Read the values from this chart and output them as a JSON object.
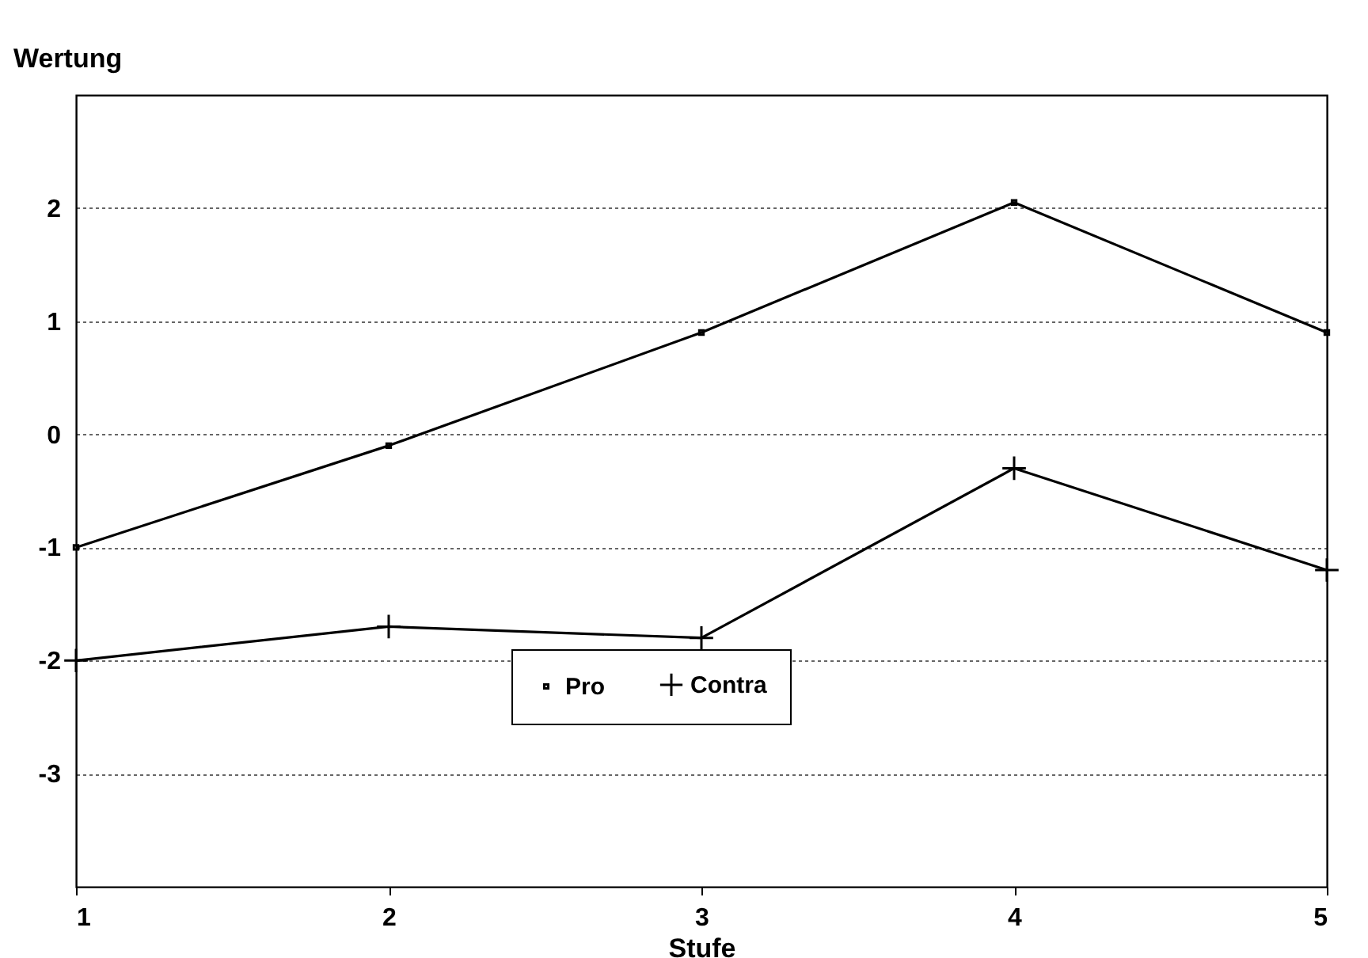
{
  "chart_data": {
    "type": "line",
    "xlabel": "Stufe",
    "ylabel": "Wertung",
    "x": [
      1,
      2,
      3,
      4,
      5
    ],
    "xlim": [
      1,
      5
    ],
    "xticks": [
      1,
      2,
      3,
      4,
      5
    ],
    "ylim": [
      -4,
      3
    ],
    "yticks": [
      -3,
      -2,
      -1,
      0,
      1,
      2
    ],
    "grid": "y",
    "legend": "bottom",
    "series": [
      {
        "name": "Pro",
        "color": "#000000",
        "marker": "square",
        "values": [
          -1,
          -0.1,
          0.9,
          2.05,
          0.9
        ]
      },
      {
        "name": "Contra",
        "color": "#000000",
        "marker": "cross",
        "values": [
          -2,
          -1.7,
          -1.8,
          -0.3,
          -1.2
        ]
      }
    ]
  }
}
